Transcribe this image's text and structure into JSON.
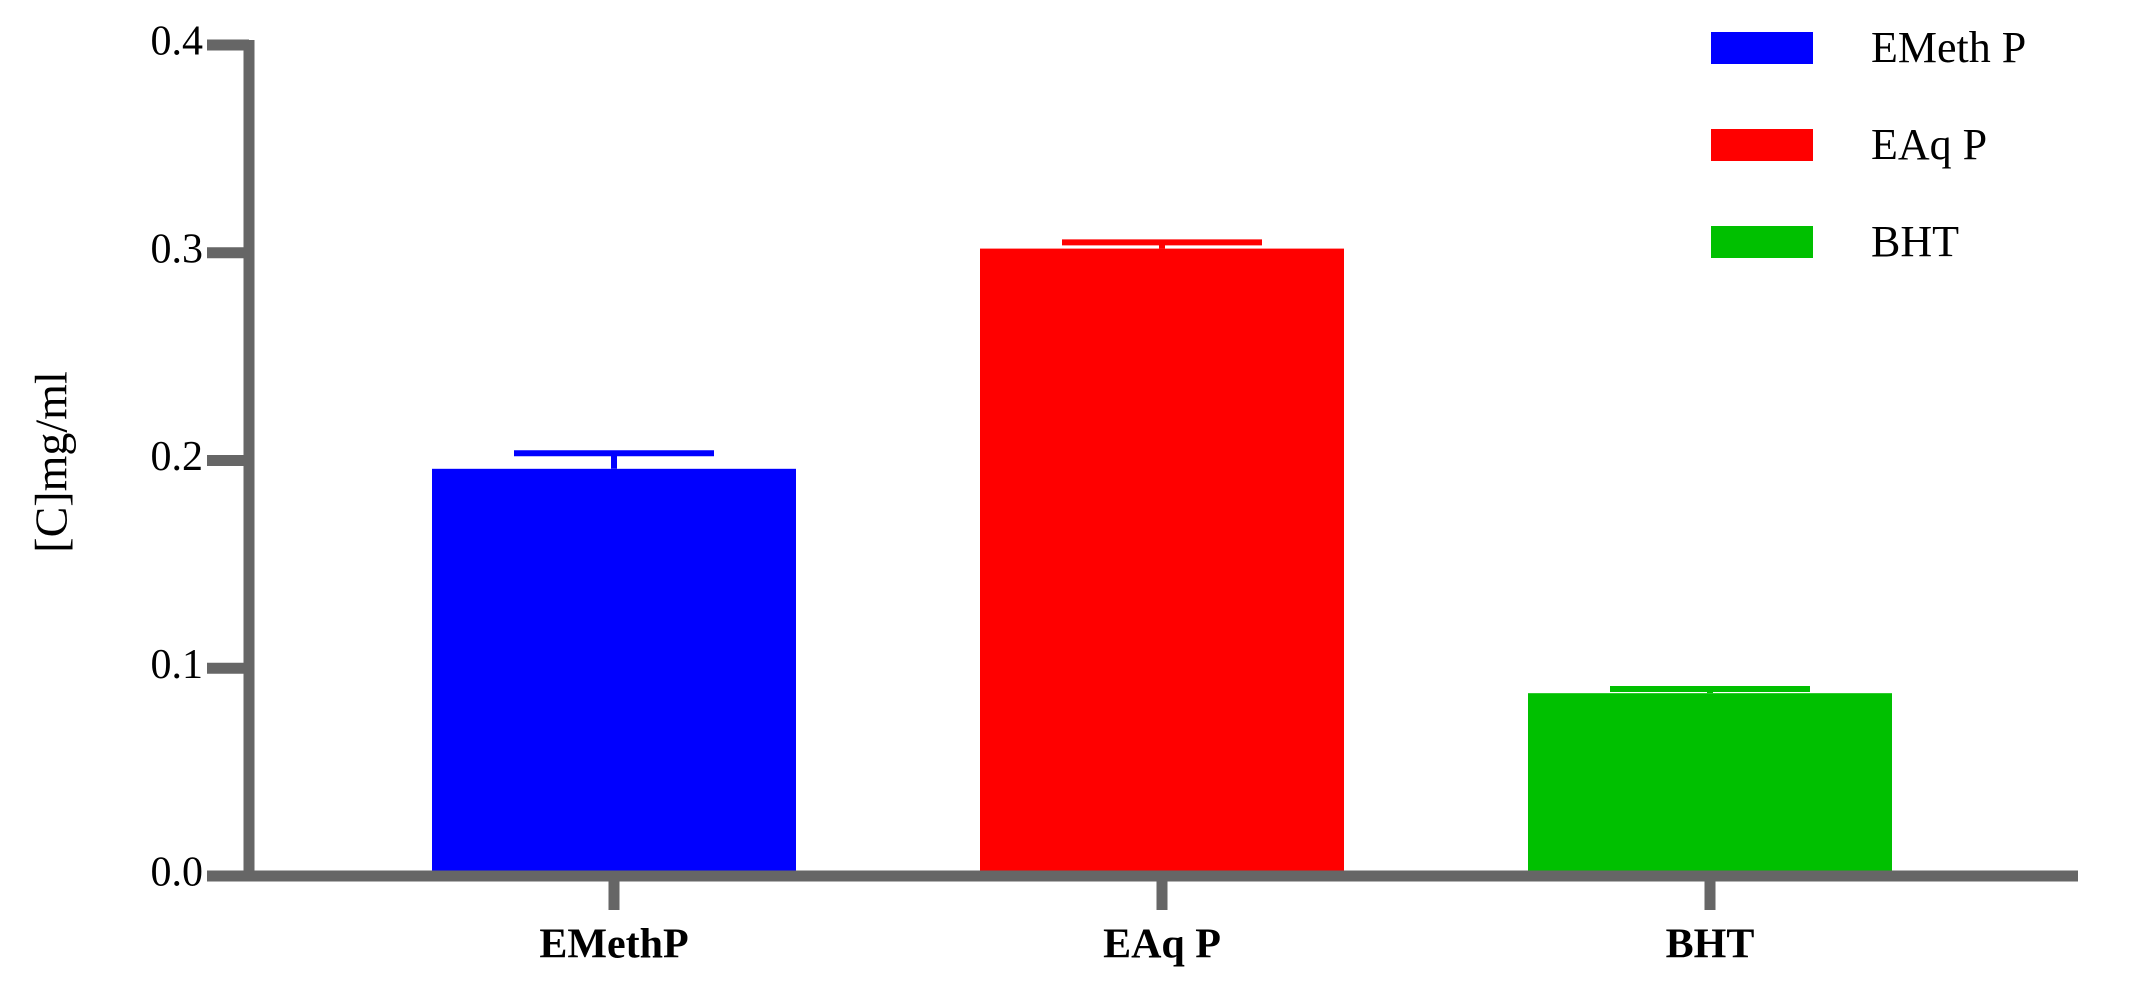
{
  "chart_data": {
    "type": "bar",
    "y_label": "[C]mg/ml",
    "categories": [
      "EMethP",
      "EAq P",
      "BHT"
    ],
    "values": [
      0.196,
      0.302,
      0.088
    ],
    "errors": [
      0.0075,
      0.003,
      0.002
    ],
    "colors": [
      "#0000ff",
      "#ff0000",
      "#00c000"
    ],
    "legend": [
      "EMeth P",
      "EAq P",
      "BHT"
    ],
    "ylim": [
      0,
      0.4
    ],
    "yticks": [
      {
        "value": 0,
        "label": "0.0"
      },
      0.1,
      0.2,
      0.3,
      0.4
    ]
  }
}
